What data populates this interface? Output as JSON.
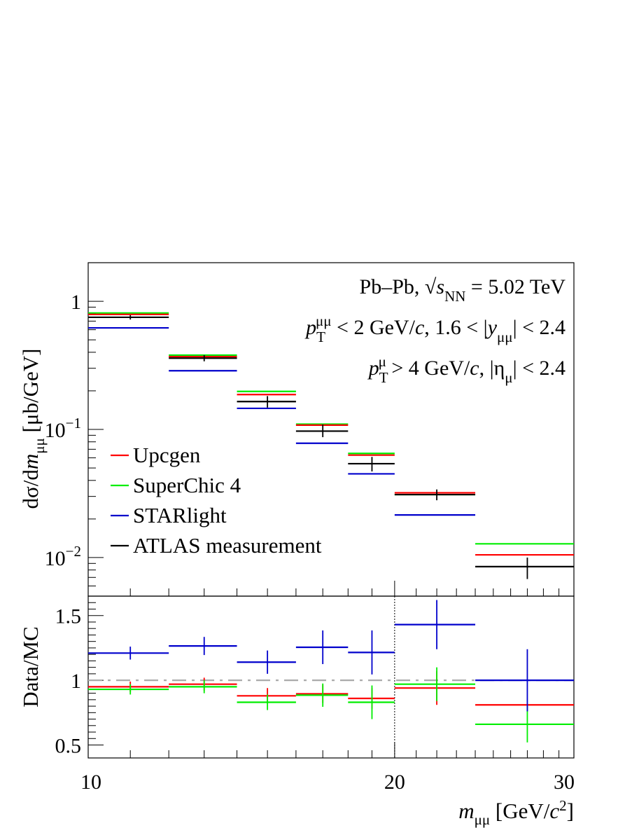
{
  "chart_data": [
    {
      "type": "line",
      "panel": "main",
      "ylabel_parts": {
        "pre": "dσ/d",
        "var": "m",
        "sub": "μμ",
        "post": " [μb/GeV]"
      },
      "yscale": "log",
      "ylim": [
        0.005,
        2.0
      ],
      "xlim": [
        10,
        30
      ],
      "yticks": [
        {
          "value": 1,
          "base": "1",
          "exp": ""
        },
        {
          "value": 0.1,
          "base": "10",
          "exp": "−1"
        },
        {
          "value": 0.01,
          "base": "10",
          "exp": "−2"
        }
      ],
      "bin_edges": [
        10,
        12,
        14,
        16,
        18,
        20,
        24,
        30
      ],
      "bin_centers": [
        11,
        13,
        15,
        17,
        19,
        22,
        27
      ],
      "series": [
        {
          "name": "Upcgen",
          "color": "#ff0000",
          "values": [
            0.79,
            0.37,
            0.187,
            0.108,
            0.063,
            0.032,
            0.0105
          ]
        },
        {
          "name": "SuperChic 4",
          "color": "#00ee00",
          "values": [
            0.81,
            0.38,
            0.198,
            0.11,
            0.065,
            0.031,
            0.0128
          ]
        },
        {
          "name": "STARlight",
          "color": "#0000cc",
          "values": [
            0.62,
            0.287,
            0.146,
            0.078,
            0.045,
            0.0215,
            null
          ]
        },
        {
          "name": "ATLAS measurement",
          "color": "#000000",
          "values": [
            0.75,
            0.36,
            0.165,
            0.097,
            0.054,
            0.031,
            0.0085
          ],
          "yerr_lo": [
            0.03,
            0.02,
            0.017,
            0.01,
            0.007,
            0.003,
            0.0017
          ],
          "yerr_hi": [
            0.03,
            0.02,
            0.017,
            0.012,
            0.007,
            0.003,
            0.0015
          ]
        }
      ],
      "annotations": [
        {
          "parts": [
            {
              "t": "Pb–Pb,  √"
            },
            {
              "t": "s",
              "it": true
            },
            {
              "t": "NN",
              "sub": true
            },
            {
              "t": " = 5.02 TeV"
            }
          ]
        },
        {
          "parts": [
            {
              "t": "p",
              "it": true
            },
            {
              "t": "T",
              "sub": true
            },
            {
              "t": "μμ",
              "sup": true
            },
            {
              "t": " < 2 GeV/"
            },
            {
              "t": "c",
              "it": true
            },
            {
              "t": ", 1.6 < |"
            },
            {
              "t": "y",
              "it": true
            },
            {
              "t": "μμ",
              "sub": true
            },
            {
              "t": "| < 2.4"
            }
          ]
        },
        {
          "parts": [
            {
              "t": "p",
              "it": true
            },
            {
              "t": "T",
              "sub": true
            },
            {
              "t": "μ",
              "sup": true
            },
            {
              "t": " > 4 GeV/"
            },
            {
              "t": "c",
              "it": true
            },
            {
              "t": ", |η"
            },
            {
              "t": "μ",
              "sub": true
            },
            {
              "t": "| < 2.4"
            }
          ]
        }
      ],
      "legend_position": "left-middle"
    },
    {
      "type": "scatter",
      "panel": "ratio",
      "ylabel": "Data/MC",
      "xlabel_parts": {
        "var": "m",
        "sub": "μμ",
        "unit_pre": " [GeV/",
        "unit_var": "c",
        "unit_exp": "2",
        "unit_post": "]"
      },
      "ylim": [
        0.4,
        1.65
      ],
      "xlim": [
        10,
        30
      ],
      "yticks": [
        "0.5",
        "1",
        "1.5"
      ],
      "xticks": [
        "10",
        "20",
        "30"
      ],
      "reference_line": 1.0,
      "vertical_marker_x": 20,
      "series": [
        {
          "name": "Upcgen",
          "color": "#ff0000",
          "values": [
            0.95,
            0.97,
            0.88,
            0.895,
            0.86,
            0.94,
            0.81
          ],
          "yerr": [
            0.04,
            0.05,
            0.06,
            0.07,
            0.08,
            0.13,
            0.0
          ]
        },
        {
          "name": "SuperChic 4",
          "color": "#00ee00",
          "values": [
            0.93,
            0.95,
            0.83,
            0.885,
            0.83,
            0.97,
            0.66
          ],
          "yerr": [
            0.04,
            0.05,
            0.06,
            0.09,
            0.13,
            0.13,
            0.14
          ]
        },
        {
          "name": "STARlight",
          "color": "#0000cc",
          "values": [
            1.21,
            1.265,
            1.14,
            1.255,
            1.215,
            1.43,
            1.0
          ],
          "yerr": [
            0.05,
            0.07,
            0.09,
            0.13,
            0.17,
            0.19,
            0.24
          ]
        }
      ]
    }
  ]
}
